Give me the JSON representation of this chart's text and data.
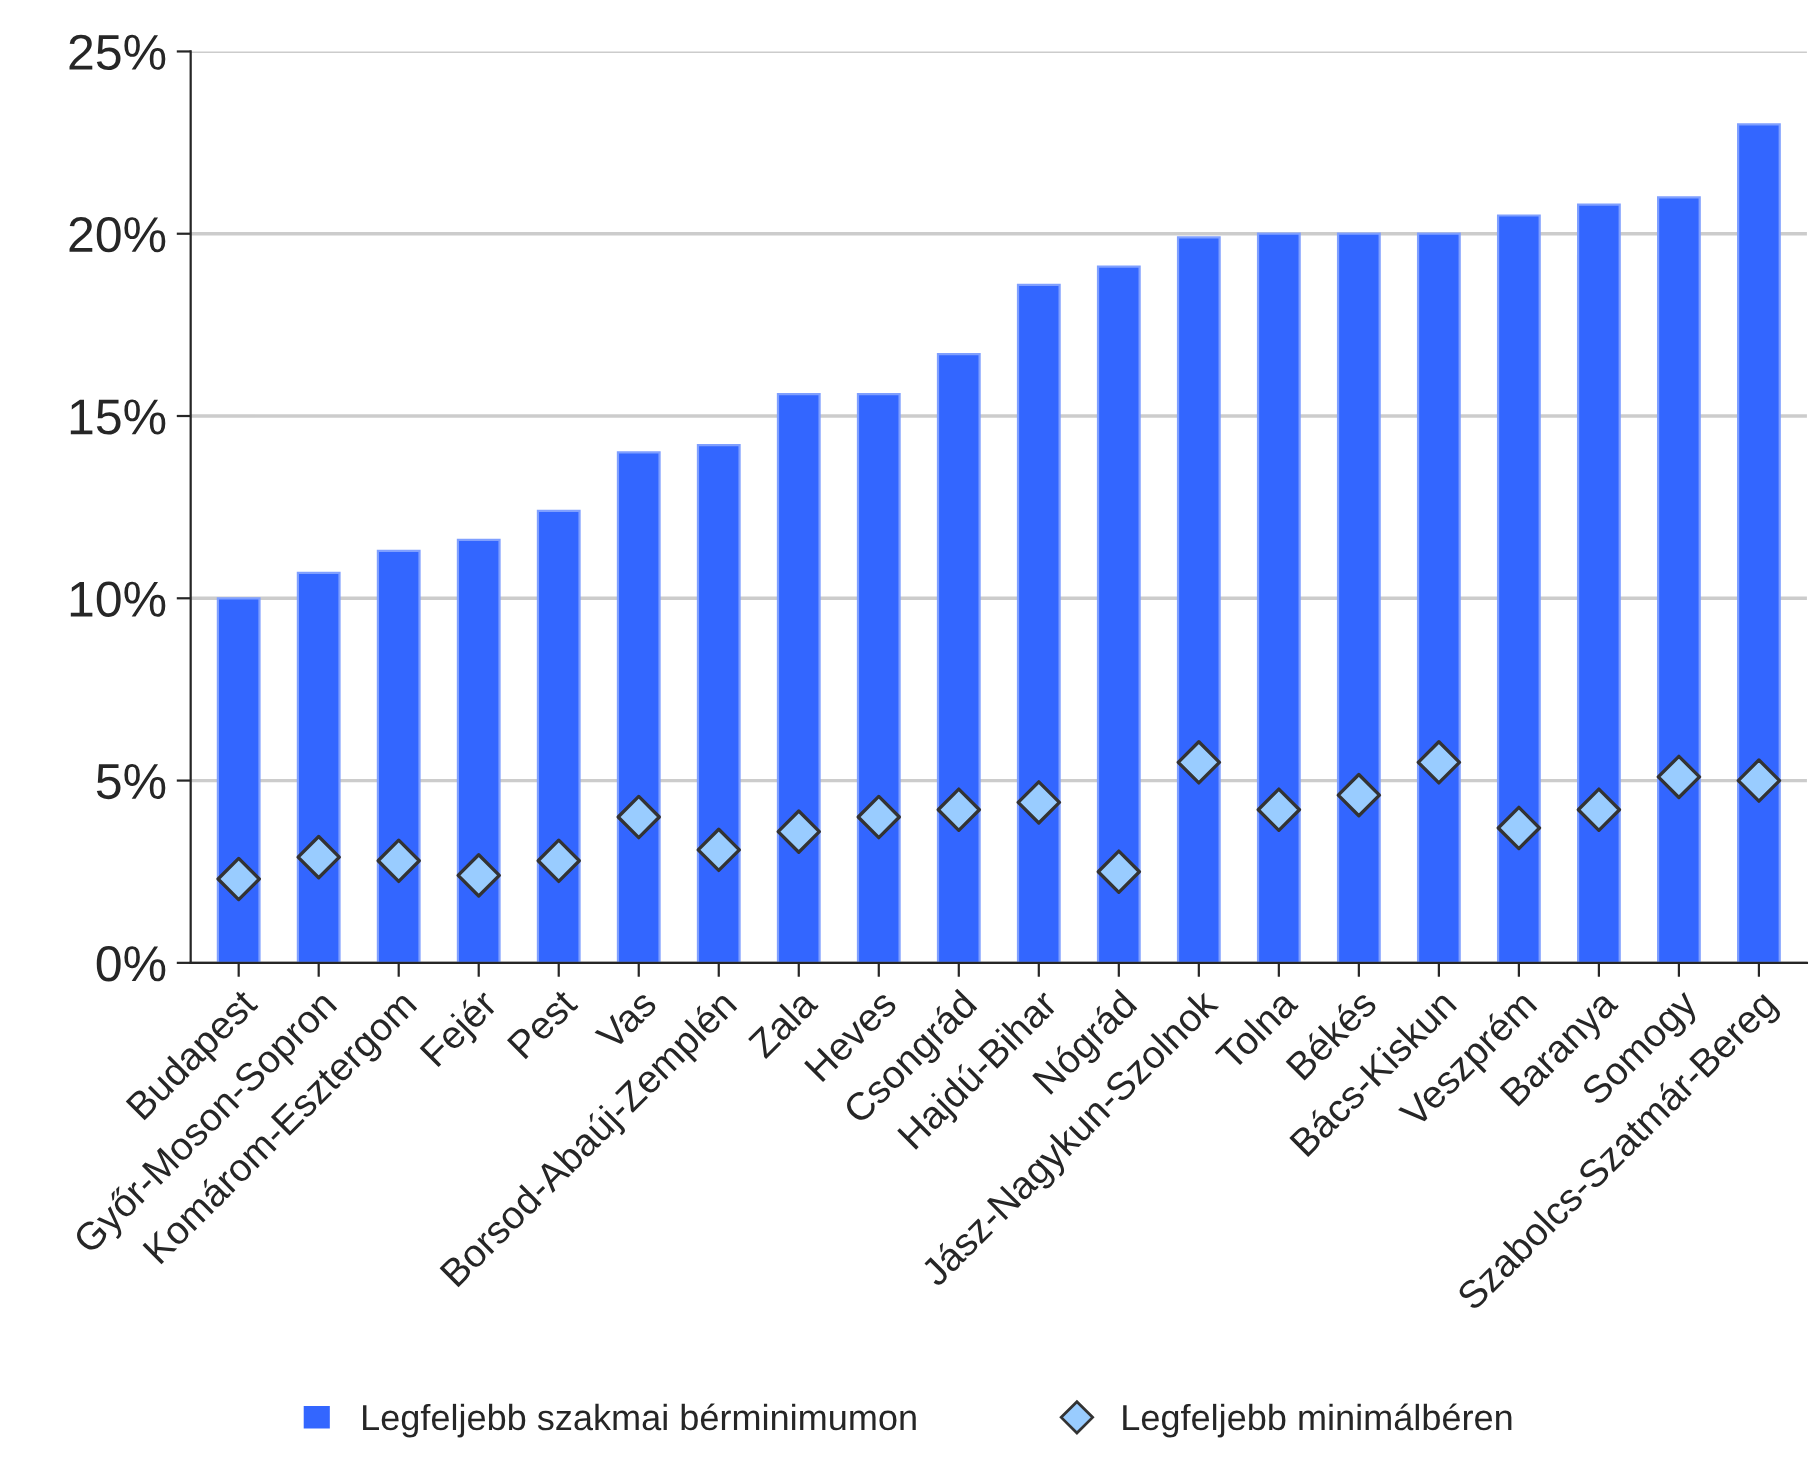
{
  "chart_data": {
    "type": "bar",
    "categories": [
      "Budapest",
      "Győr-Moson-Sopron",
      "Komárom-Esztergom",
      "Fejér",
      "Pest",
      "Vas",
      "Borsod-Abaúj-Zemplén",
      "Zala",
      "Heves",
      "Csongrád",
      "Hajdú-Bihar",
      "Nógrád",
      "Jász-Nagykun-Szolnok",
      "Tolna",
      "Békés",
      "Bács-Kiskun",
      "Veszprém",
      "Baranya",
      "Somogy",
      "Szabolcs-Szatmár-Bereg"
    ],
    "series": [
      {
        "name": "Legfeljebb szakmai bérminimumon",
        "color": "#3366ff",
        "values": [
          10.0,
          10.7,
          11.3,
          11.6,
          12.4,
          14.0,
          14.2,
          15.6,
          15.6,
          16.7,
          18.6,
          19.1,
          19.9,
          20.0,
          20.0,
          20.0,
          20.5,
          20.8,
          21.0,
          23.0
        ]
      },
      {
        "name": "Legfeljebb minimálbéren",
        "type": "scatter",
        "marker": "diamond",
        "color": "#99ccff",
        "values": [
          2.3,
          2.9,
          2.8,
          2.4,
          2.8,
          4.0,
          3.1,
          3.6,
          4.0,
          4.2,
          4.4,
          2.5,
          5.5,
          4.2,
          4.6,
          5.5,
          3.7,
          4.2,
          5.1,
          5.0
        ]
      }
    ],
    "ylim": [
      0,
      25
    ],
    "yticks": [
      {
        "value": 0,
        "label": "0%"
      },
      {
        "value": 5,
        "label": "5%"
      },
      {
        "value": 10,
        "label": "10%"
      },
      {
        "value": 15,
        "label": "15%"
      },
      {
        "value": 20,
        "label": "20%"
      },
      {
        "value": 25,
        "label": "25%"
      }
    ],
    "grid": "y",
    "legend": "bottom"
  }
}
